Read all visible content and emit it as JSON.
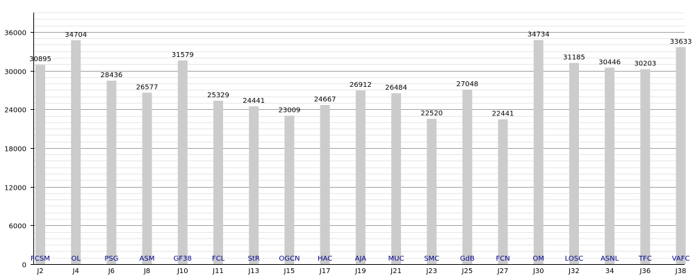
{
  "chart_data": {
    "type": "bar",
    "categories": [
      "J2",
      "J4",
      "J6",
      "J8",
      "J10",
      "J11",
      "J13",
      "J15",
      "J17",
      "J19",
      "J21",
      "J23",
      "J25",
      "J27",
      "J30",
      "J32",
      "34",
      "J36",
      "J38"
    ],
    "teams": [
      "FCSM",
      "OL",
      "PSG",
      "ASM",
      "GF38",
      "FCL",
      "StR",
      "OGCN",
      "HAC",
      "AJA",
      "MUC",
      "SMC",
      "GdB",
      "FCN",
      "OM",
      "LOSC",
      "ASNL",
      "TFC",
      "VAFC"
    ],
    "values": [
      30895,
      34704,
      28436,
      26577,
      31579,
      25329,
      24441,
      23009,
      24667,
      26912,
      26484,
      22520,
      27048,
      22441,
      34734,
      31185,
      30446,
      30203,
      33633
    ],
    "ylim": [
      0,
      39000
    ],
    "yticks": [
      0,
      6000,
      12000,
      18000,
      24000,
      30000,
      36000
    ],
    "grid": true,
    "title": "",
    "xlabel": "",
    "ylabel": "",
    "colors": {
      "bar": "#cccccc",
      "grid_major": "#a0a0a0",
      "grid_minor": "#e6e6e6",
      "team_label": "#00008b",
      "axis": "#000000"
    }
  }
}
